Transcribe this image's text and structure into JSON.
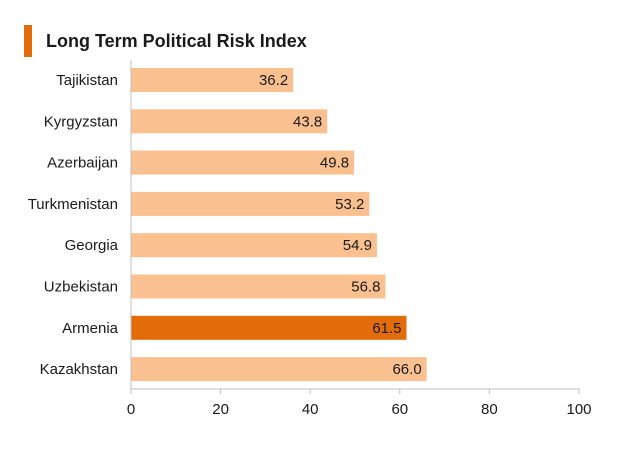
{
  "title": "Long Term Political Risk Index",
  "colors": {
    "accent": "#E36C0A",
    "bar": "#FAC090",
    "highlight": "#E36C0A",
    "axis": "#BFBFBF"
  },
  "chart_data": {
    "type": "bar",
    "orientation": "horizontal",
    "title": "Long Term Political Risk Index",
    "categories": [
      "Tajikistan",
      "Kyrgyzstan",
      "Azerbaijan",
      "Turkmenistan",
      "Georgia",
      "Uzbekistan",
      "Armenia",
      "Kazakhstan"
    ],
    "values": [
      36.2,
      43.8,
      49.8,
      53.2,
      54.9,
      56.8,
      61.5,
      66.0
    ],
    "value_labels": [
      "36.2",
      "43.8",
      "49.8",
      "53.2",
      "54.9",
      "56.8",
      "61.5",
      "66.0"
    ],
    "highlight_category": "Armenia",
    "xlim": [
      0,
      100
    ],
    "xticks": [
      "0",
      "20",
      "40",
      "60",
      "80",
      "100"
    ],
    "xlabel": "",
    "ylabel": "",
    "grid": false,
    "legend": "none"
  }
}
